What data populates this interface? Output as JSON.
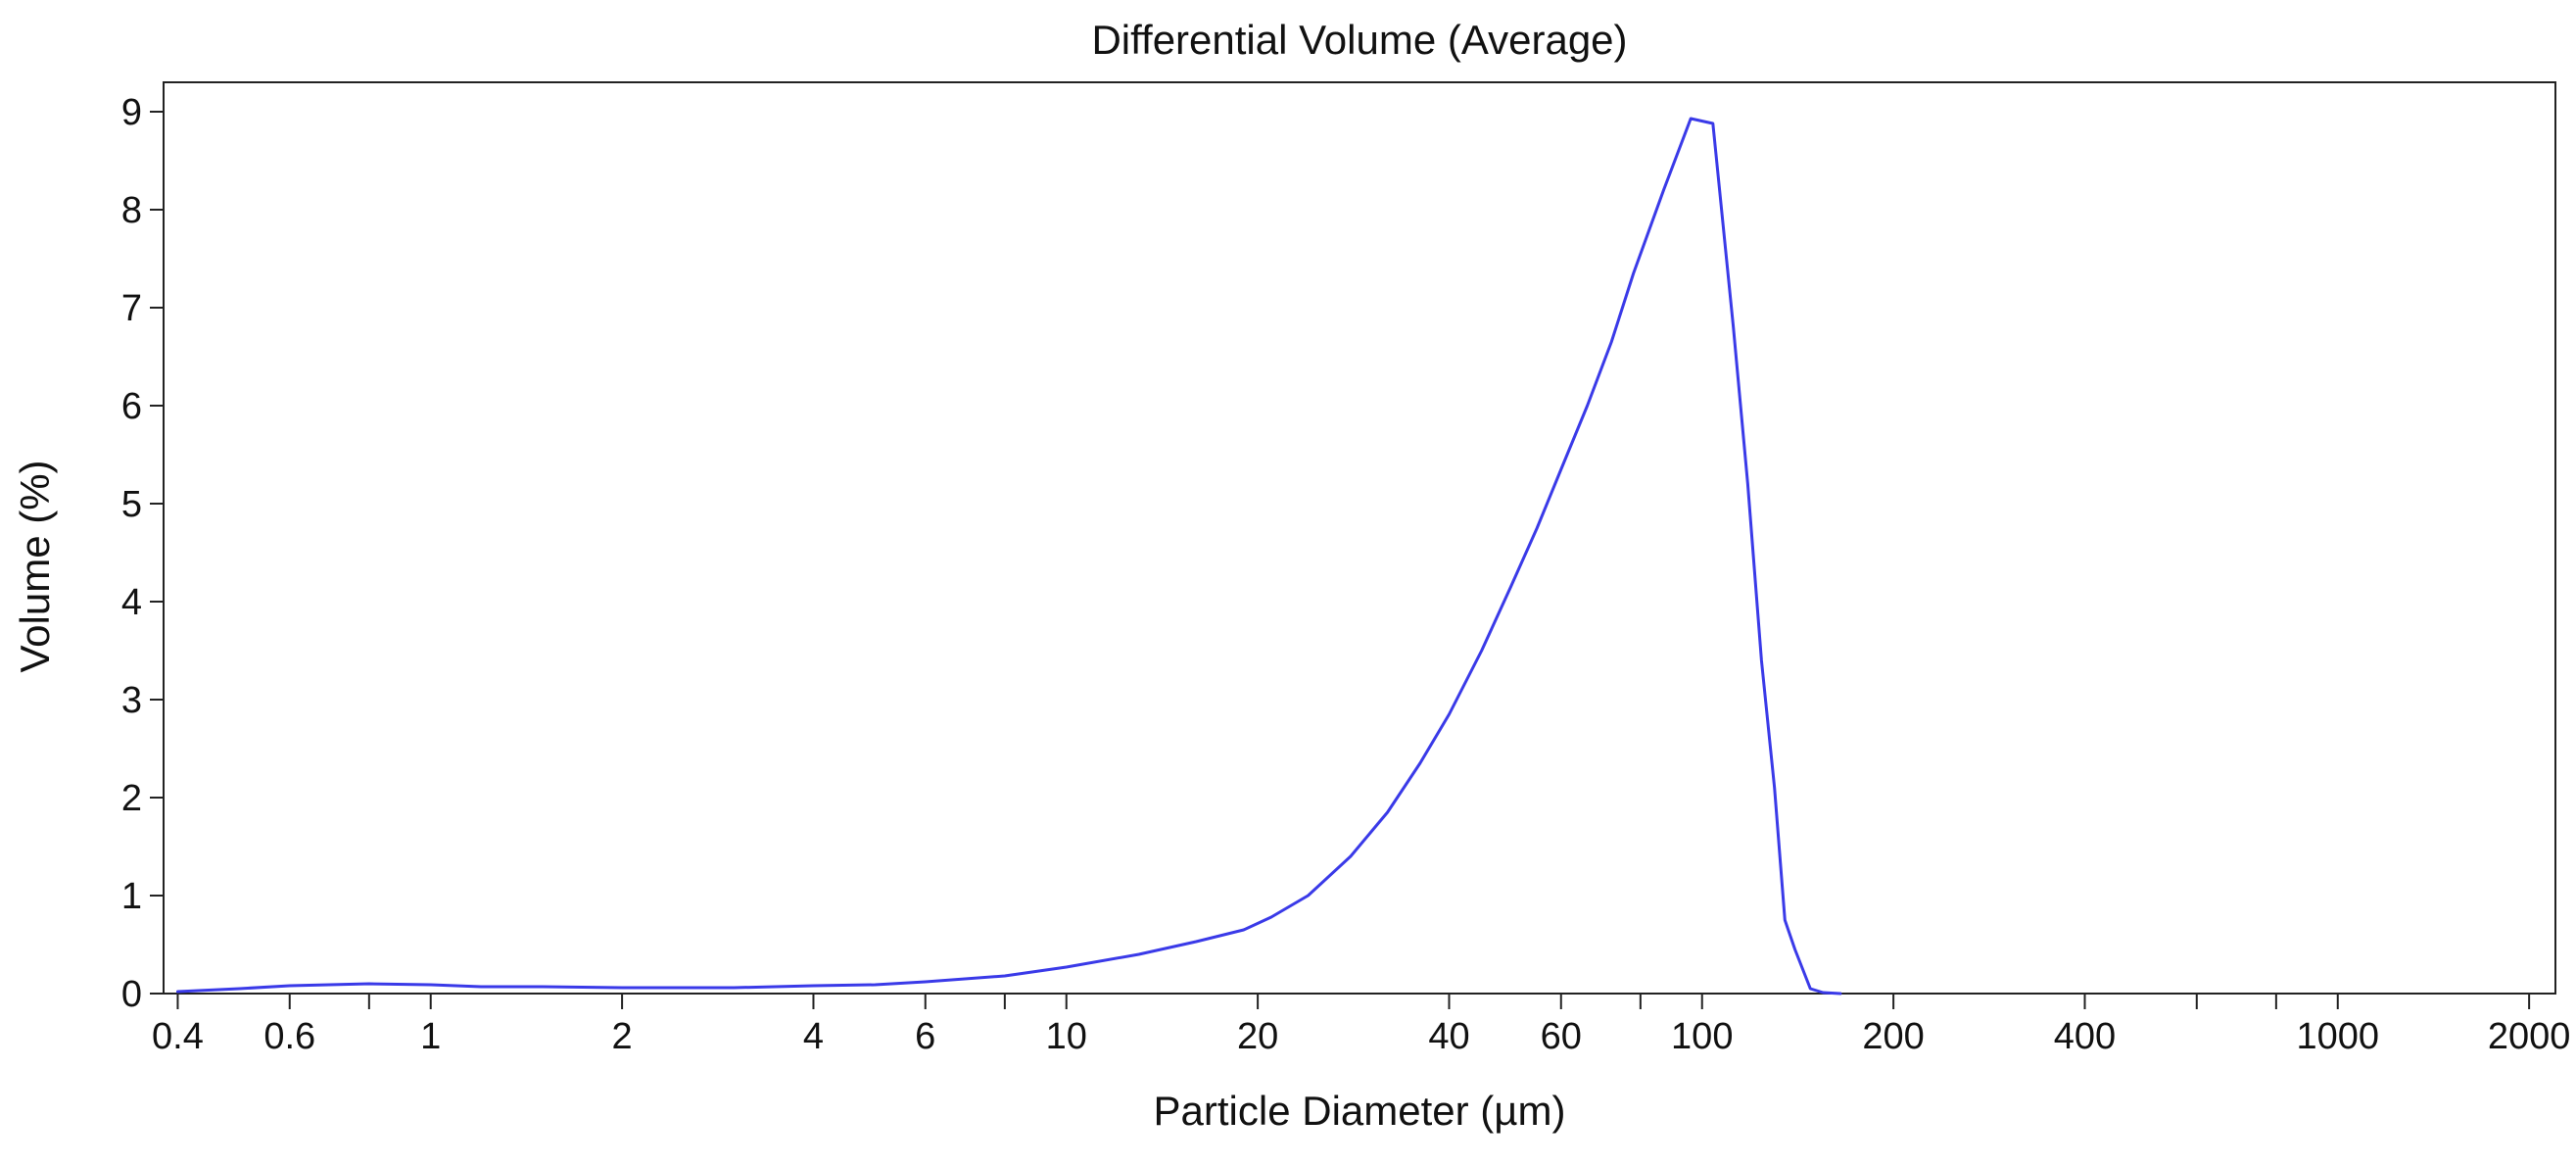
{
  "chart_data": {
    "type": "line",
    "title": "Differential Volume (Average)",
    "xlabel": "Particle Diameter (µm)",
    "ylabel": "Volume (%)",
    "x_scale": "log",
    "xlim": [
      0.38,
      2200
    ],
    "ylim": [
      0,
      9.3
    ],
    "x_ticks": [
      0.4,
      0.6,
      1,
      2,
      4,
      6,
      10,
      20,
      40,
      60,
      100,
      200,
      400,
      1000,
      2000
    ],
    "x_tick_labels": [
      "0.4",
      "0.6",
      "1",
      "2",
      "4",
      "6",
      "10",
      "20",
      "40",
      "60",
      "100",
      "200",
      "400",
      "1000",
      "2000"
    ],
    "x_minor_ticks": [
      0.8,
      8,
      80,
      600,
      800
    ],
    "y_ticks": [
      0,
      1,
      2,
      3,
      4,
      5,
      6,
      7,
      8,
      9
    ],
    "y_tick_labels": [
      "0",
      "1",
      "2",
      "3",
      "4",
      "5",
      "6",
      "7",
      "8",
      "9"
    ],
    "grid": false,
    "line_color": "#3a3ae8",
    "series": [
      {
        "name": "Differential Volume (Average)",
        "x": [
          0.4,
          0.5,
          0.6,
          0.8,
          1.0,
          1.2,
          1.5,
          2.0,
          3.0,
          4.0,
          5.0,
          6.0,
          8.0,
          10,
          13,
          16,
          19,
          21,
          24,
          28,
          32,
          36,
          40,
          45,
          50,
          55,
          60,
          66,
          72,
          78,
          87,
          96,
          104,
          112,
          118,
          124,
          130,
          135,
          140,
          148,
          155,
          165
        ],
        "y": [
          0.02,
          0.05,
          0.08,
          0.1,
          0.09,
          0.07,
          0.07,
          0.06,
          0.06,
          0.08,
          0.09,
          0.12,
          0.18,
          0.27,
          0.4,
          0.53,
          0.65,
          0.78,
          1.0,
          1.4,
          1.85,
          2.35,
          2.85,
          3.5,
          4.15,
          4.75,
          5.35,
          6.0,
          6.65,
          7.35,
          8.2,
          8.93,
          8.88,
          6.8,
          5.2,
          3.4,
          2.1,
          0.75,
          0.45,
          0.05,
          0.01,
          0.0
        ]
      }
    ]
  }
}
